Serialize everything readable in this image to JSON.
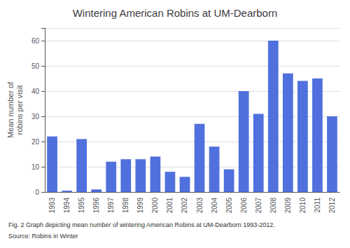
{
  "chart_data": {
    "type": "bar",
    "title": "Wintering American Robins at UM-Dearborn",
    "categories": [
      "1993",
      "1994",
      "1995",
      "1996",
      "1997",
      "1998",
      "1999",
      "2000",
      "2001",
      "2002",
      "2003",
      "2004",
      "2005",
      "2006",
      "2007",
      "2008",
      "2009",
      "2010",
      "2011",
      "2012"
    ],
    "values": [
      22,
      0.5,
      21,
      1,
      12,
      13,
      13,
      14,
      8,
      6,
      27,
      18,
      9,
      40,
      31,
      60,
      47,
      44,
      45,
      30
    ],
    "ylabel": "Mean number of\nrobins per visit",
    "ylim": [
      0,
      65
    ],
    "yticks": [
      0,
      10,
      20,
      30,
      40,
      50,
      60
    ],
    "grid": true,
    "annotations": [
      "Fig. 2 Graph depicting mean number of wintering American Robins at UM-Dearborn 1993-2012.",
      "Source: Robins in Winter"
    ]
  }
}
